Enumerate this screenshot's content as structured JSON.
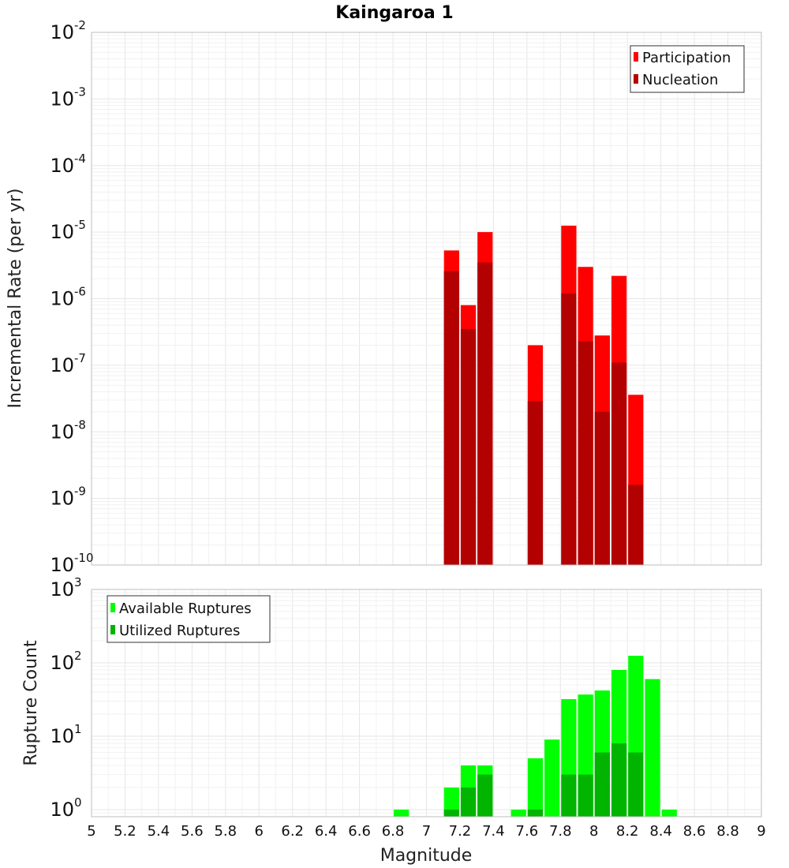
{
  "chart_data": [
    {
      "type": "bar",
      "title": "Kaingaroa 1",
      "xlabel": "",
      "ylabel": "Incremental Rate (per yr)",
      "xlim": [
        5,
        9
      ],
      "ylim": [
        1e-10,
        0.01
      ],
      "yscale": "log",
      "grid": true,
      "legend_position": "top-right",
      "x": [
        7.15,
        7.25,
        7.35,
        7.65,
        7.85,
        7.95,
        8.05,
        8.15,
        8.25
      ],
      "series": [
        {
          "name": "Participation",
          "color": "#ff0000",
          "values": [
            5.3e-06,
            8e-07,
            1e-05,
            2e-07,
            1.25e-05,
            3e-06,
            2.8e-07,
            2.2e-06,
            3.6e-08
          ]
        },
        {
          "name": "Nucleation",
          "color": "#b30000",
          "values": [
            2.6e-06,
            3.5e-07,
            3.5e-06,
            2.9e-08,
            1.2e-06,
            2.3e-07,
            2e-08,
            1.1e-07,
            1.6e-09
          ]
        }
      ],
      "ytick_exponents": [
        -10,
        -9,
        -8,
        -7,
        -6,
        -5,
        -4,
        -3,
        -2
      ]
    },
    {
      "type": "bar",
      "title": "",
      "xlabel": "Magnitude",
      "ylabel": "Rupture Count",
      "xlim": [
        5,
        9
      ],
      "ylim": [
        0.8,
        1000
      ],
      "yscale": "log",
      "grid": true,
      "legend_position": "top-left",
      "x": [
        6.85,
        7.15,
        7.25,
        7.35,
        7.55,
        7.65,
        7.75,
        7.85,
        7.95,
        8.05,
        8.15,
        8.25,
        8.35,
        8.45
      ],
      "series": [
        {
          "name": "Available Ruptures",
          "color": "#00ff00",
          "values": [
            1,
            2,
            4,
            4,
            1,
            5,
            9,
            32,
            37,
            42,
            80,
            125,
            60,
            1
          ]
        },
        {
          "name": "Utilized Ruptures",
          "color": "#00b400",
          "values": [
            0,
            1,
            2,
            3,
            0,
            1,
            0,
            3,
            3,
            6,
            8,
            6,
            0,
            0
          ]
        }
      ],
      "ytick_exponents": [
        0,
        1,
        2,
        3
      ],
      "xticks": [
        "5",
        "5.2",
        "5.4",
        "5.6",
        "5.8",
        "6",
        "6.2",
        "6.4",
        "6.6",
        "6.8",
        "7",
        "7.2",
        "7.4",
        "7.6",
        "7.8",
        "8",
        "8.2",
        "8.4",
        "8.6",
        "8.8",
        "9"
      ]
    }
  ]
}
